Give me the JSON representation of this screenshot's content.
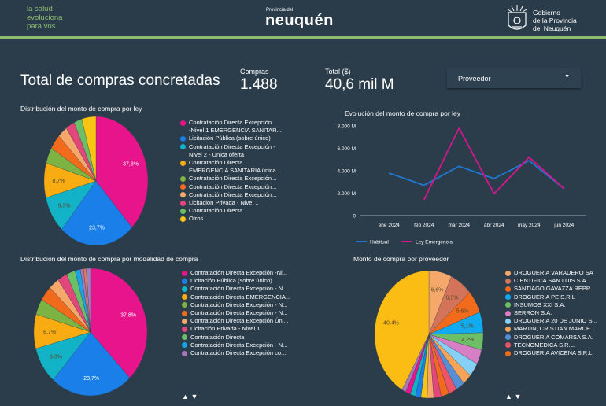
{
  "header": {
    "tagline": [
      "la salud",
      "evoluciona",
      "para vos"
    ],
    "brand_small": "Provincia del",
    "brand_big": "neuquén",
    "gobierno": [
      "Gobierno",
      "de la Provincia",
      "del Neuquén"
    ],
    "accent_color": "#8dbd72"
  },
  "dashboard": {
    "title": "Total de compras concretadas",
    "kpis": [
      {
        "label": "Compras",
        "value": "1.488"
      },
      {
        "label": "Total ($)",
        "value": "40,6 mil M"
      }
    ],
    "filter": {
      "label": "Proveedor",
      "icon": "caret-down-icon"
    }
  },
  "chart_data": [
    {
      "type": "pie",
      "title": "Distribución del monto de compra por ley",
      "slices": [
        {
          "label": "Contratación Directa Excepción -Nivel 1 EMERGENCIA SANITAR...",
          "value": 37.8,
          "display": "37,8%",
          "color": "#e8148c"
        },
        {
          "label": "Licitación Pública (sobre único)",
          "value": 23.7,
          "display": "23,7%",
          "color": "#1a7fe8"
        },
        {
          "label": "Contratación Directa Excepción - Nivel 2 - Unica oferta",
          "value": 9.3,
          "display": "9,3%",
          "color": "#12b3c7"
        },
        {
          "label": "Contratación Directa EMERGENCIA SANITARIA única...",
          "value": 8.7,
          "display": "8,7%",
          "color": "#f9ab12"
        },
        {
          "label": "Contratación Directa Excepción...",
          "value": 4.0,
          "display": "",
          "color": "#7cb342"
        },
        {
          "label": "Contratación Directa Excepción...",
          "value": 3.8,
          "display": "",
          "color": "#f26b1d"
        },
        {
          "label": "Contratación Directa Excepción...",
          "value": 3.0,
          "display": "",
          "color": "#f6a86b"
        },
        {
          "label": "Licitación Privada - Nivel 1",
          "value": 2.8,
          "display": "",
          "color": "#e2467b"
        },
        {
          "label": "Contratación Directa",
          "value": 2.5,
          "display": "",
          "color": "#6dbf67"
        },
        {
          "label": "Otros",
          "value": 4.4,
          "display": "",
          "color": "#f9c412"
        }
      ],
      "legend_lines": [
        [
          "Contratación Directa Excepción",
          "-Nivel 1 EMERGENCIA SANITAR..."
        ],
        [
          "Licitación Pública (sobre único)"
        ],
        [
          "Contratación Directa Excepción -",
          "Nivel 2 - Unica oferta"
        ],
        [
          "Contratación Directa",
          "EMERGENCIA SANITARIA única..."
        ],
        [
          "Contratación Directa Excepción..."
        ],
        [
          "Contratación Directa Excepción..."
        ],
        [
          "Contratación Directa Excepción..."
        ],
        [
          "Licitación Privada - Nivel 1"
        ],
        [
          "Contratación Directa"
        ],
        [
          "Otros"
        ]
      ]
    },
    {
      "type": "line",
      "title": "Evolución del monto de compra por ley",
      "categories": [
        "ene 2024",
        "feb 2024",
        "mar 2024",
        "abr 2024",
        "may 2024",
        "jun 2024"
      ],
      "yticks": [
        "0",
        "2.000 M",
        "4.000 M",
        "6.000 M",
        "8.000 M"
      ],
      "ytick_values": [
        0,
        2000,
        4000,
        6000,
        8000
      ],
      "ylim": [
        0,
        8000
      ],
      "yunit": "M",
      "series": [
        {
          "name": "Habitual",
          "color": "#1f78d1",
          "values": [
            3800,
            2700,
            4400,
            3300,
            4900,
            2400
          ]
        },
        {
          "name": "Ley Emergencia",
          "color": "#d4168c",
          "values": [
            null,
            1400,
            7800,
            1950,
            5200,
            2400
          ]
        }
      ],
      "legend": "bottom-left"
    },
    {
      "type": "pie",
      "title": "Distribución del monto de compra por modalidad de compra",
      "slices": [
        {
          "label": "Contratación Directa Excepción -Ni...",
          "value": 37.8,
          "display": "37,8%",
          "color": "#e8148c"
        },
        {
          "label": "Licitación Pública (sobre único)",
          "value": 23.7,
          "display": "23,7%",
          "color": "#1a7fe8"
        },
        {
          "label": "Contratación Directa Excepción - N...",
          "value": 9.3,
          "display": "9,3%",
          "color": "#12b3c7"
        },
        {
          "label": "Contratación Directa EMERGENCIA...",
          "value": 8.7,
          "display": "8,7%",
          "color": "#f9ab12"
        },
        {
          "label": "Contratación Directa Excepción - N...",
          "value": 4.0,
          "display": "",
          "color": "#7cb342"
        },
        {
          "label": "Contratación Directa Excepción - N...",
          "value": 3.8,
          "display": "",
          "color": "#f26b1d"
        },
        {
          "label": "Contratación Directa Excepción Úni...",
          "value": 3.0,
          "display": "",
          "color": "#f6a86b"
        },
        {
          "label": "Licitación Privada - Nivel 1",
          "value": 2.8,
          "display": "",
          "color": "#e2467b"
        },
        {
          "label": "Contratación Directa",
          "value": 2.5,
          "display": "",
          "color": "#6dbf67"
        },
        {
          "label": "Contratación Directa Excepción - N...",
          "value": 1.5,
          "display": "",
          "color": "#1aa3e8"
        },
        {
          "label": "Contratación Directa Excepción co...",
          "value": 0.9,
          "display": "",
          "color": "#a678b8"
        },
        {
          "label": "",
          "value": 0.8,
          "display": "",
          "color": "#e2785a"
        },
        {
          "label": "",
          "value": 1.2,
          "display": "",
          "color": "#9a82c4"
        }
      ],
      "legend_count": 11,
      "pager": {
        "up": "▲",
        "down": "▼"
      }
    },
    {
      "type": "pie",
      "title": "Monto de compra por proveedor",
      "slices": [
        {
          "label": "DROGUERIA VARADERO SA",
          "value": 6.6,
          "display": "6,6%",
          "color": "#f6a86b"
        },
        {
          "label": "CIENTIFICA SAN LUIS S.A.",
          "value": 6.5,
          "display": "6,5%",
          "color": "#d3745a"
        },
        {
          "label": "SANTIAGO GAVAZZA REPR...",
          "value": 5.6,
          "display": "5,6%",
          "color": "#f26b1d"
        },
        {
          "label": "DROGUERIA PE S.R.L",
          "value": 5.1,
          "display": "5,1%",
          "color": "#12aaf0"
        },
        {
          "label": "INSUMOS XXI S.A.",
          "value": 4.2,
          "display": "4,2%",
          "color": "#6dbf67"
        },
        {
          "label": "SERRON S.A.",
          "value": 3.6,
          "display": "",
          "color": "#d77fc4"
        },
        {
          "label": "DROGUERIA 20 DE JUNIO S...",
          "value": 3.4,
          "display": "",
          "color": "#86cff5"
        },
        {
          "label": "MARTIN, CRISTIAN MARCE...",
          "value": 2.7,
          "display": "",
          "color": "#f6a35a"
        },
        {
          "label": "DROGUERIA COMARSA S.A.",
          "value": 2.5,
          "display": "",
          "color": "#5590d6"
        },
        {
          "label": "TECNOMEDICA S.R.L.",
          "value": 2.4,
          "display": "",
          "color": "#ef5466"
        },
        {
          "label": "DROGUERIA AVICENA S.R.L.",
          "value": 2.3,
          "display": "",
          "color": "#f26b1d"
        },
        {
          "label": "",
          "value": 2.1,
          "display": "",
          "color": "#e2467b"
        },
        {
          "label": "",
          "value": 1.9,
          "display": "",
          "color": "#f6a86b"
        },
        {
          "label": "",
          "value": 1.8,
          "display": "",
          "color": "#f9c412"
        },
        {
          "label": "",
          "value": 1.6,
          "display": "",
          "color": "#1a7fe8"
        },
        {
          "label": "",
          "value": 1.5,
          "display": "",
          "color": "#12b3c7"
        },
        {
          "label": "",
          "value": 1.4,
          "display": "",
          "color": "#e8148c"
        },
        {
          "label": "",
          "value": 1.2,
          "display": "",
          "color": "#a678b8"
        },
        {
          "label": "",
          "value": 40.4,
          "display": "40,4%",
          "color": "#fbbd14"
        }
      ],
      "legend_count": 11,
      "pager": {
        "up": "▲",
        "down": "▼"
      }
    }
  ]
}
